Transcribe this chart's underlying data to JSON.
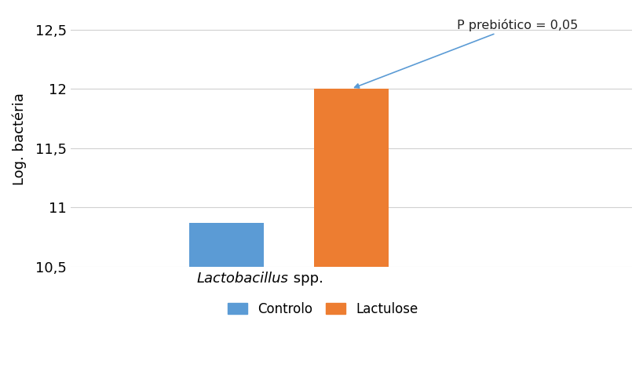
{
  "categories": [
    "Controlo",
    "Lactulose"
  ],
  "values": [
    10.87,
    12.0
  ],
  "bar_colors": [
    "#5b9bd5",
    "#ed7d31"
  ],
  "bar_width": 0.12,
  "ylabel": "Log. bactéria",
  "xlabel_italic": "Lactobacillus",
  "xlabel_normal": " spp.",
  "ylim": [
    10.5,
    12.65
  ],
  "yticks": [
    10.5,
    11.0,
    11.5,
    12.0,
    12.5
  ],
  "ytick_labels": [
    "10,5",
    "11",
    "11,5",
    "12",
    "12,5"
  ],
  "annotation_text": "P prebiótico = 0,05",
  "legend_labels": [
    "Controlo",
    "Lactulose"
  ],
  "background_color": "#ffffff",
  "grid_color": "#d0d0d0",
  "bar_positions": [
    0.35,
    0.55
  ],
  "arrow_color": "#5b9bd5",
  "xlim": [
    0.1,
    1.0
  ]
}
